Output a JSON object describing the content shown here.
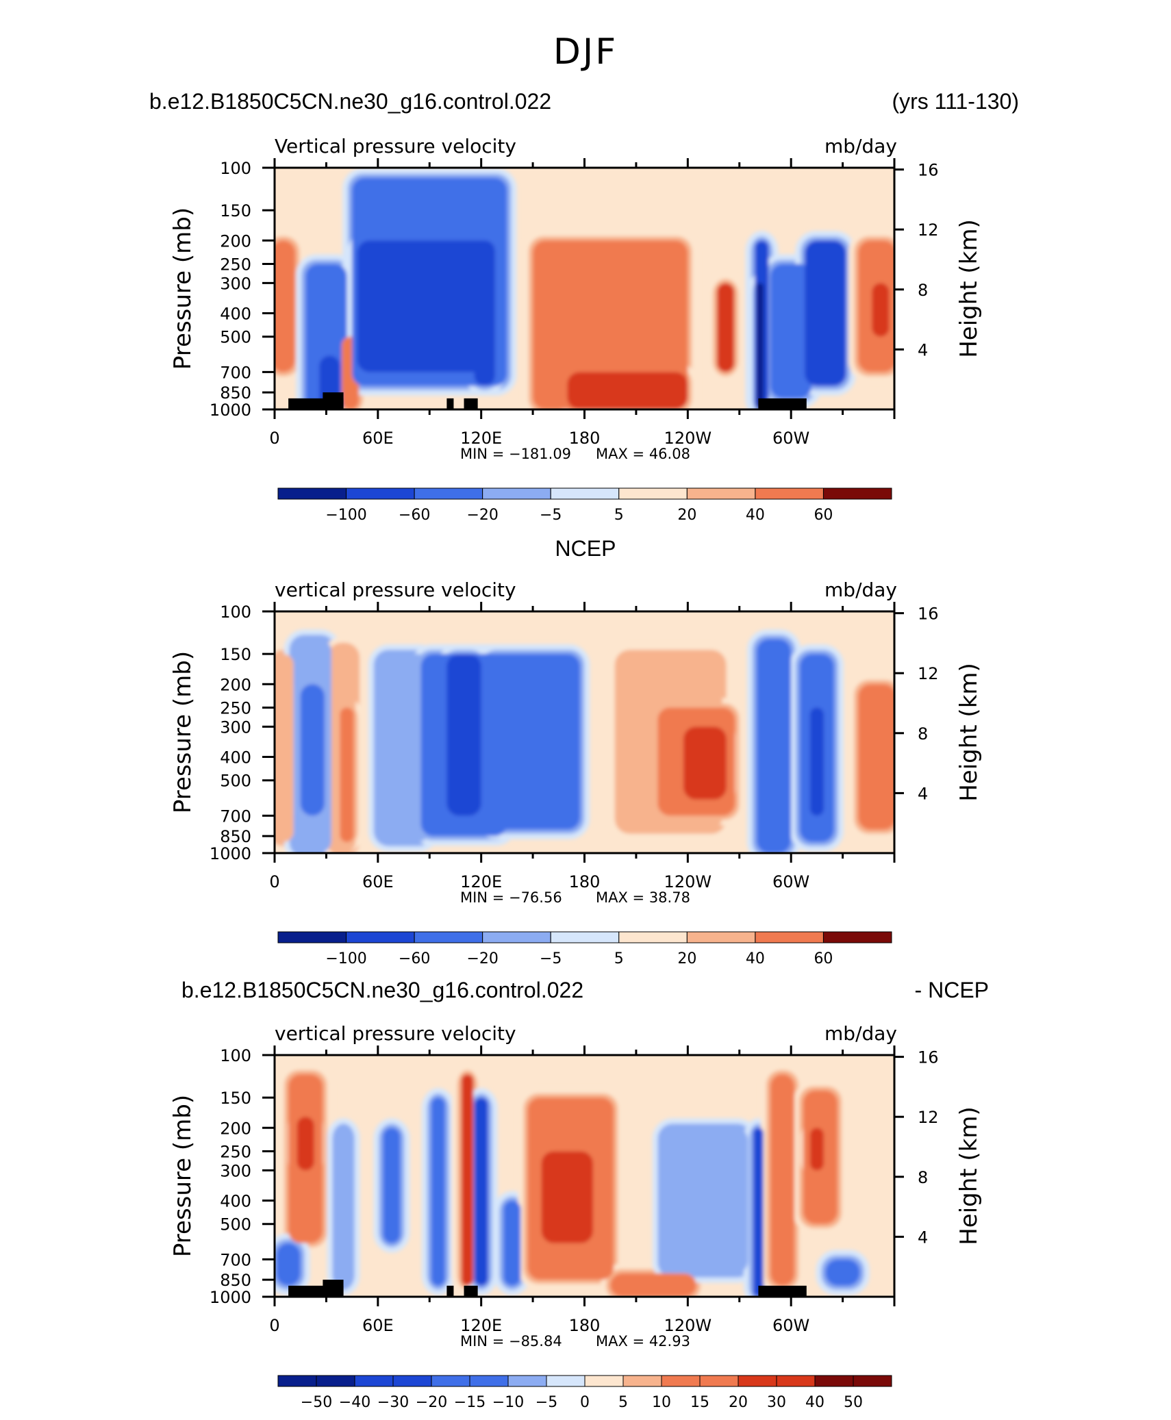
{
  "season": "DJF",
  "case_name": "b.e12.B1850C5CN.ne30_g16.control.022",
  "years_label": "(yrs 111-130)",
  "obs_name": "NCEP",
  "diff_case_label": "b.e12.B1850C5CN.ne30_g16.control.022",
  "diff_suffix": "- NCEP",
  "colors": {
    "deep_blue": "#081f8c",
    "strong_blue": "#1c46d4",
    "mid_blue": "#3f6fe8",
    "light_blue": "#8cacf2",
    "pale_blue": "#d6e6fb",
    "pale_orange": "#fde6cf",
    "light_orange": "#f7b38d",
    "mid_orange": "#f07a50",
    "strong_red": "#d8381a",
    "deep_red": "#7a0a08"
  },
  "chart_data": [
    {
      "type": "heatmap",
      "title": "Vertical pressure velocity",
      "units": "mb/day",
      "ylabel": "Pressure (mb)",
      "y2label": "Height (km)",
      "xticks": [
        "0",
        "60E",
        "120E",
        "180",
        "120W",
        "60W"
      ],
      "xlim": [
        0,
        360
      ],
      "yticks": [
        100,
        150,
        200,
        250,
        300,
        400,
        500,
        700,
        850,
        1000
      ],
      "ylim": [
        1000,
        100
      ],
      "y2ticks": [
        4,
        8,
        12,
        16
      ],
      "min_label": "MIN = −181.09",
      "max_label": "MAX =   46.08",
      "colorbar_labels": [
        "−100",
        "−60",
        "−20",
        "−5",
        "5",
        "20",
        "40",
        "60"
      ],
      "features": [
        {
          "lon": 5,
          "width": 14,
          "top": 200,
          "bottom": 700,
          "level": 2
        },
        {
          "lon": 30,
          "width": 24,
          "top": 250,
          "bottom": 1000,
          "level": -2
        },
        {
          "lon": 32,
          "width": 12,
          "top": 600,
          "bottom": 1000,
          "level": -4
        },
        {
          "lon": 44,
          "width": 10,
          "top": 500,
          "bottom": 1000,
          "level": 2
        },
        {
          "lon": 90,
          "width": 90,
          "top": 110,
          "bottom": 800,
          "level": -2
        },
        {
          "lon": 88,
          "width": 80,
          "top": 200,
          "bottom": 700,
          "level": -3
        },
        {
          "lon": 107,
          "width": 10,
          "top": 250,
          "bottom": 600,
          "level": -4
        },
        {
          "lon": 122,
          "width": 12,
          "top": 200,
          "bottom": 800,
          "level": -4
        },
        {
          "lon": 195,
          "width": 90,
          "top": 200,
          "bottom": 1000,
          "level": 2
        },
        {
          "lon": 205,
          "width": 70,
          "top": 700,
          "bottom": 1000,
          "level": 3
        },
        {
          "lon": 262,
          "width": 10,
          "top": 300,
          "bottom": 700,
          "level": 3
        },
        {
          "lon": 283,
          "width": 8,
          "top": 200,
          "bottom": 1000,
          "level": -4
        },
        {
          "lon": 282,
          "width": 4,
          "top": 300,
          "bottom": 1000,
          "level": -5
        },
        {
          "lon": 300,
          "width": 24,
          "top": 250,
          "bottom": 900,
          "level": -2
        },
        {
          "lon": 320,
          "width": 24,
          "top": 200,
          "bottom": 800,
          "level": -3
        },
        {
          "lon": 350,
          "width": 22,
          "top": 200,
          "bottom": 700,
          "level": 2
        },
        {
          "lon": 352,
          "width": 10,
          "top": 300,
          "bottom": 500,
          "level": 3
        }
      ],
      "land": [
        [
          8,
          40,
          900
        ],
        [
          28,
          40,
          850
        ],
        [
          100,
          104,
          900
        ],
        [
          110,
          118,
          900
        ],
        [
          281,
          309,
          900
        ]
      ]
    },
    {
      "type": "heatmap",
      "title": "vertical pressure velocity",
      "units": "mb/day",
      "panel_label": "NCEP",
      "ylabel": "Pressure (mb)",
      "y2label": "Height (km)",
      "xticks": [
        "0",
        "60E",
        "120E",
        "180",
        "120W",
        "60W"
      ],
      "xlim": [
        0,
        360
      ],
      "yticks": [
        100,
        150,
        200,
        250,
        300,
        400,
        500,
        700,
        850,
        1000
      ],
      "ylim": [
        1000,
        100
      ],
      "y2ticks": [
        4,
        8,
        12,
        16
      ],
      "min_label": "MIN = −76.56",
      "max_label": "MAX =   38.78",
      "colorbar_labels": [
        "−100",
        "−60",
        "−20",
        "−5",
        "5",
        "20",
        "40",
        "60"
      ],
      "features": [
        {
          "lon": 5,
          "width": 12,
          "top": 150,
          "bottom": 900,
          "level": 1
        },
        {
          "lon": 22,
          "width": 22,
          "top": 130,
          "bottom": 1000,
          "level": -1
        },
        {
          "lon": 22,
          "width": 14,
          "top": 200,
          "bottom": 700,
          "level": -2
        },
        {
          "lon": 40,
          "width": 14,
          "top": 140,
          "bottom": 1000,
          "level": 1
        },
        {
          "lon": 42,
          "width": 8,
          "top": 250,
          "bottom": 900,
          "level": 2
        },
        {
          "lon": 75,
          "width": 30,
          "top": 150,
          "bottom": 900,
          "level": -1
        },
        {
          "lon": 110,
          "width": 50,
          "top": 150,
          "bottom": 850,
          "level": -2
        },
        {
          "lon": 110,
          "width": 20,
          "top": 150,
          "bottom": 700,
          "level": -3
        },
        {
          "lon": 150,
          "width": 55,
          "top": 150,
          "bottom": 800,
          "level": -2
        },
        {
          "lon": 230,
          "width": 60,
          "top": 150,
          "bottom": 800,
          "level": 1
        },
        {
          "lon": 245,
          "width": 45,
          "top": 250,
          "bottom": 700,
          "level": 2
        },
        {
          "lon": 250,
          "width": 25,
          "top": 300,
          "bottom": 600,
          "level": 3
        },
        {
          "lon": 290,
          "width": 20,
          "top": 130,
          "bottom": 1000,
          "level": -2
        },
        {
          "lon": 315,
          "width": 20,
          "top": 150,
          "bottom": 900,
          "level": -2
        },
        {
          "lon": 315,
          "width": 8,
          "top": 250,
          "bottom": 700,
          "level": -3
        },
        {
          "lon": 350,
          "width": 22,
          "top": 200,
          "bottom": 800,
          "level": 2
        }
      ],
      "land": []
    },
    {
      "type": "heatmap",
      "title": "vertical pressure velocity",
      "units": "mb/day",
      "ylabel": "Pressure (mb)",
      "y2label": "Height (km)",
      "xticks": [
        "0",
        "60E",
        "120E",
        "180",
        "120W",
        "60W"
      ],
      "xlim": [
        0,
        360
      ],
      "yticks": [
        100,
        150,
        200,
        250,
        300,
        400,
        500,
        700,
        850,
        1000
      ],
      "ylim": [
        1000,
        100
      ],
      "y2ticks": [
        4,
        8,
        12,
        16
      ],
      "min_label": "MIN = −85.84",
      "max_label": "MAX =   42.93",
      "colorbar_labels": [
        "−50",
        "−40",
        "−30",
        "−20",
        "−15",
        "−10",
        "−5",
        "0",
        "5",
        "10",
        "15",
        "20",
        "30",
        "40",
        "50"
      ],
      "features": [
        {
          "lon": 18,
          "width": 20,
          "top": 120,
          "bottom": 600,
          "level": 2
        },
        {
          "lon": 18,
          "width": 10,
          "top": 180,
          "bottom": 300,
          "level": 3
        },
        {
          "lon": 8,
          "width": 14,
          "top": 600,
          "bottom": 900,
          "level": -2
        },
        {
          "lon": 40,
          "width": 8,
          "top": 200,
          "bottom": 900,
          "level": -1
        },
        {
          "lon": 68,
          "width": 10,
          "top": 200,
          "bottom": 600,
          "level": -2
        },
        {
          "lon": 95,
          "width": 8,
          "top": 150,
          "bottom": 900,
          "level": -2
        },
        {
          "lon": 112,
          "width": 7,
          "top": 120,
          "bottom": 900,
          "level": 3
        },
        {
          "lon": 120,
          "width": 8,
          "top": 150,
          "bottom": 900,
          "level": -3
        },
        {
          "lon": 138,
          "width": 10,
          "top": 400,
          "bottom": 900,
          "level": -2
        },
        {
          "lon": 172,
          "width": 50,
          "top": 150,
          "bottom": 850,
          "level": 2
        },
        {
          "lon": 170,
          "width": 30,
          "top": 250,
          "bottom": 600,
          "level": 3
        },
        {
          "lon": 220,
          "width": 50,
          "top": 800,
          "bottom": 1000,
          "level": 2
        },
        {
          "lon": 250,
          "width": 50,
          "top": 200,
          "bottom": 800,
          "level": -1
        },
        {
          "lon": 281,
          "width": 6,
          "top": 200,
          "bottom": 1000,
          "level": -4
        },
        {
          "lon": 295,
          "width": 14,
          "top": 120,
          "bottom": 900,
          "level": 2
        },
        {
          "lon": 317,
          "width": 20,
          "top": 140,
          "bottom": 500,
          "level": 2
        },
        {
          "lon": 315,
          "width": 8,
          "top": 200,
          "bottom": 300,
          "level": 3
        },
        {
          "lon": 330,
          "width": 20,
          "top": 700,
          "bottom": 900,
          "level": -2
        }
      ],
      "land": [
        [
          8,
          40,
          900
        ],
        [
          28,
          40,
          850
        ],
        [
          100,
          104,
          900
        ],
        [
          110,
          118,
          900
        ],
        [
          281,
          309,
          900
        ]
      ]
    }
  ]
}
